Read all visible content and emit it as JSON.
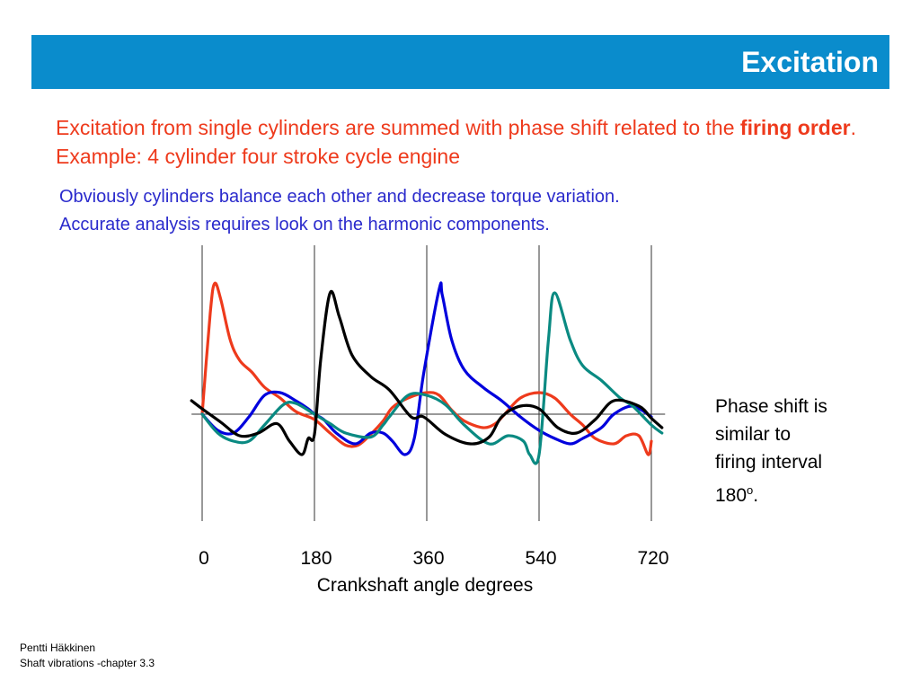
{
  "header": {
    "title": "Excitation"
  },
  "intro": {
    "part1": "Excitation from single cylinders are summed with phase shift related to the ",
    "bold": "firing order",
    "part2": ". Example: 4 cylinder four stroke cycle engine"
  },
  "note": {
    "line1": "Obviously cylinders balance each other and decrease torque variation.",
    "line2": "Accurate analysis requires look on the harmonic components."
  },
  "side_note": {
    "line1": "Phase shift is",
    "line2": "similar to",
    "line3": "firing interval",
    "line4_text": "180",
    "line4_sup": "o",
    "line4_end": "."
  },
  "footer": {
    "author": "Pentti Häkkinen",
    "course": "Shaft vibrations  -chapter 3.3"
  },
  "chart_data": {
    "type": "line",
    "xlabel": "Crankshaft angle degrees",
    "ylabel": "",
    "x_ticks": [
      0,
      180,
      360,
      540,
      720
    ],
    "xlim": [
      -17,
      742
    ],
    "ylim": [
      -1.0,
      1.0
    ],
    "series": [
      {
        "color": "#ee3a1c",
        "x": [
          0,
          13,
          20,
          30,
          45,
          60,
          80,
          100,
          125,
          150,
          180,
          205,
          230,
          250,
          270,
          290,
          305,
          330,
          360,
          380,
          400,
          420,
          450,
          470,
          485,
          510,
          540,
          565,
          590,
          610,
          630,
          660,
          680,
          700,
          715,
          720
        ],
        "y": [
          0.0,
          0.75,
          0.97,
          0.85,
          0.55,
          0.4,
          0.31,
          0.2,
          0.12,
          0.02,
          -0.04,
          -0.14,
          -0.23,
          -0.23,
          -0.15,
          -0.05,
          0.05,
          0.12,
          0.16,
          0.14,
          0.03,
          -0.05,
          -0.1,
          -0.07,
          0.0,
          0.12,
          0.16,
          0.12,
          0.0,
          -0.08,
          -0.18,
          -0.22,
          -0.16,
          -0.16,
          -0.3,
          -0.2
        ]
      },
      {
        "color": "#0000dd",
        "x": [
          0,
          25,
          50,
          75,
          100,
          125,
          150,
          170,
          180,
          195,
          215,
          245,
          270,
          290,
          305,
          325,
          340,
          355,
          380,
          385,
          400,
          420,
          450,
          480,
          510,
          540,
          565,
          590,
          610,
          640,
          660,
          690,
          720
        ],
        "y": [
          0.0,
          -0.12,
          -0.14,
          -0.02,
          0.14,
          0.16,
          0.1,
          0.04,
          0.0,
          -0.04,
          -0.14,
          -0.22,
          -0.14,
          -0.14,
          -0.2,
          -0.3,
          -0.18,
          0.3,
          0.93,
          0.88,
          0.55,
          0.33,
          0.2,
          0.1,
          -0.02,
          -0.12,
          -0.18,
          -0.22,
          -0.18,
          -0.1,
          0.0,
          0.06,
          -0.02
        ]
      },
      {
        "color": "#0a8a82",
        "x": [
          0,
          25,
          50,
          75,
          100,
          130,
          150,
          180,
          205,
          230,
          270,
          290,
          300,
          330,
          360,
          390,
          420,
          460,
          490,
          515,
          525,
          540,
          555,
          565,
          590,
          610,
          640,
          670,
          690,
          720,
          737
        ],
        "y": [
          0.0,
          -0.14,
          -0.2,
          -0.2,
          -0.08,
          0.07,
          0.08,
          0.0,
          -0.07,
          -0.14,
          -0.17,
          -0.08,
          -0.02,
          0.14,
          0.14,
          0.07,
          -0.08,
          -0.22,
          -0.16,
          -0.2,
          -0.3,
          -0.3,
          0.55,
          0.9,
          0.55,
          0.36,
          0.25,
          0.12,
          0.06,
          -0.08,
          -0.14
        ]
      },
      {
        "color": "#000000",
        "x": [
          -17,
          0,
          30,
          60,
          90,
          120,
          140,
          160,
          170,
          180,
          190,
          205,
          220,
          240,
          270,
          300,
          335,
          355,
          390,
          430,
          460,
          480,
          510,
          540,
          570,
          600,
          630,
          660,
          700,
          720,
          737
        ],
        "y": [
          0.1,
          0.04,
          -0.06,
          -0.16,
          -0.14,
          -0.07,
          -0.2,
          -0.3,
          -0.18,
          -0.15,
          0.4,
          0.9,
          0.72,
          0.44,
          0.28,
          0.18,
          -0.02,
          -0.02,
          -0.15,
          -0.22,
          -0.17,
          -0.02,
          0.06,
          0.04,
          -0.1,
          -0.14,
          -0.04,
          0.1,
          0.06,
          -0.03,
          -0.1
        ]
      }
    ]
  }
}
